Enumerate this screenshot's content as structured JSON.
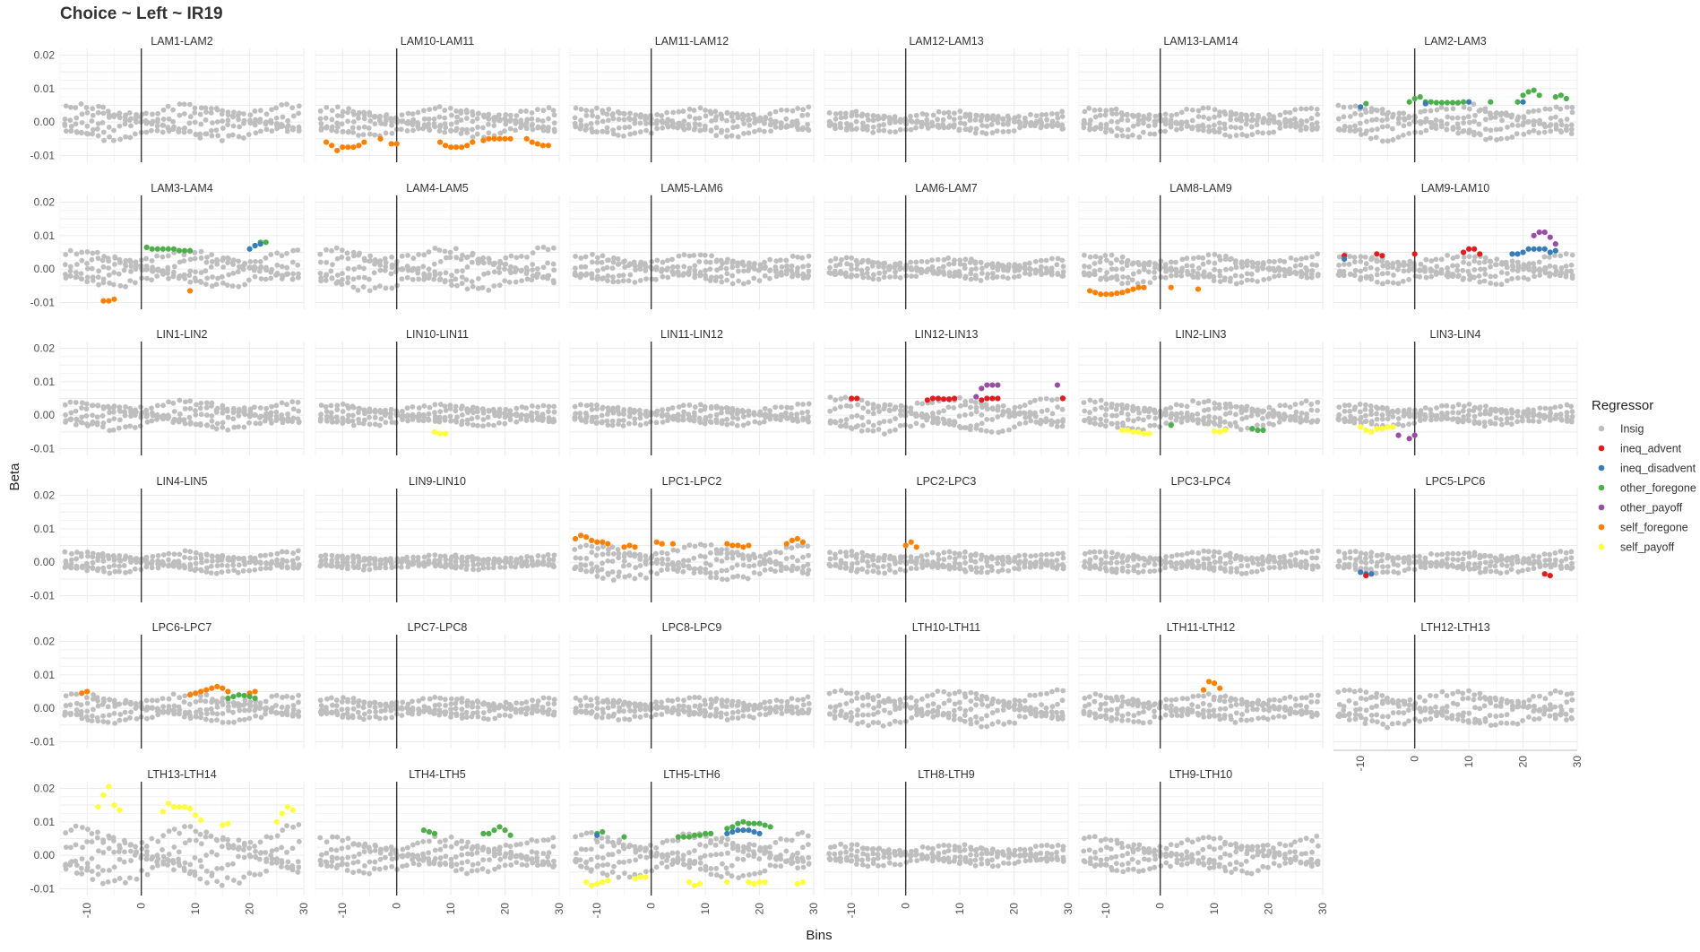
{
  "chart_data": {
    "type": "scatter",
    "title": "Choice ~ Left ~ IR19",
    "xlabel": "Bins",
    "ylabel": "Beta",
    "xlim": [
      -15,
      30
    ],
    "ylim": [
      -0.012,
      0.022
    ],
    "x_ticks": [
      -10,
      0,
      10,
      20,
      30
    ],
    "y_ticks": [
      -0.01,
      0.0,
      0.01,
      0.02
    ],
    "y_tick_labels": [
      "-0.01",
      "0.00",
      "0.01",
      "0.02"
    ],
    "vline_x": 0,
    "grid": true,
    "legend": {
      "title": "Regressor",
      "placement": "right",
      "entries": [
        {
          "name": "Insig",
          "color": "#bebebe"
        },
        {
          "name": "ineq_advent",
          "color": "#e41a1c"
        },
        {
          "name": "ineq_disadvent",
          "color": "#377eb8"
        },
        {
          "name": "other_foregone",
          "color": "#4daf4a"
        },
        {
          "name": "other_payoff",
          "color": "#984ea3"
        },
        {
          "name": "self_foregone",
          "color": "#ff7f00"
        },
        {
          "name": "self_payoff",
          "color": "#ffff33"
        }
      ]
    },
    "panels": [
      {
        "label": "LAM1-LAM2",
        "amp": 0.005,
        "sig": []
      },
      {
        "label": "LAM10-LAM11",
        "amp": 0.004,
        "sig": [
          {
            "series": "self_foregone",
            "x": [
              -13,
              -12,
              -11,
              -10,
              -9,
              -8,
              -7,
              -6,
              -3,
              -1,
              0,
              8,
              9,
              10,
              11,
              12,
              13,
              14,
              16,
              17,
              18,
              19,
              20,
              21,
              24,
              25,
              26,
              27,
              28
            ],
            "y": [
              -0.006,
              -0.007,
              -0.0085,
              -0.0075,
              -0.0075,
              -0.0075,
              -0.007,
              -0.006,
              -0.005,
              -0.0065,
              -0.0065,
              -0.006,
              -0.007,
              -0.0075,
              -0.0075,
              -0.0075,
              -0.007,
              -0.006,
              -0.0055,
              -0.005,
              -0.005,
              -0.005,
              -0.005,
              -0.005,
              -0.005,
              -0.006,
              -0.0065,
              -0.007,
              -0.007
            ]
          }
        ]
      },
      {
        "label": "LAM11-LAM12",
        "amp": 0.004,
        "sig": []
      },
      {
        "label": "LAM12-LAM13",
        "amp": 0.003,
        "sig": []
      },
      {
        "label": "LAM13-LAM14",
        "amp": 0.004,
        "sig": []
      },
      {
        "label": "LAM2-LAM3",
        "amp": 0.005,
        "sig": [
          {
            "series": "other_foregone",
            "x": [
              -9,
              -1,
              0,
              1,
              2,
              3,
              4,
              5,
              6,
              7,
              8,
              9,
              14,
              19,
              20,
              21,
              22,
              23,
              26,
              27,
              28
            ],
            "y": [
              0.0055,
              0.006,
              0.007,
              0.0075,
              0.006,
              0.006,
              0.0058,
              0.0058,
              0.0058,
              0.0058,
              0.0058,
              0.006,
              0.006,
              0.006,
              0.008,
              0.009,
              0.0095,
              0.008,
              0.0075,
              0.008,
              0.007
            ]
          },
          {
            "series": "ineq_disadvent",
            "x": [
              -10,
              2,
              10,
              20
            ],
            "y": [
              0.0045,
              0.0055,
              0.006,
              0.006
            ]
          }
        ]
      },
      {
        "label": "LAM3-LAM4",
        "amp": 0.005,
        "sig": [
          {
            "series": "self_foregone",
            "x": [
              -7,
              -6,
              -5,
              9
            ],
            "y": [
              -0.0095,
              -0.0095,
              -0.009,
              -0.0065
            ]
          },
          {
            "series": "other_foregone",
            "x": [
              1,
              2,
              3,
              4,
              5,
              6,
              7,
              8,
              9,
              21,
              22,
              23
            ],
            "y": [
              0.0065,
              0.006,
              0.006,
              0.006,
              0.006,
              0.006,
              0.0055,
              0.0055,
              0.0055,
              0.007,
              0.008,
              0.008
            ]
          },
          {
            "series": "ineq_disadvent",
            "x": [
              20,
              21,
              22
            ],
            "y": [
              0.006,
              0.007,
              0.0075
            ]
          }
        ]
      },
      {
        "label": "LAM4-LAM5",
        "amp": 0.006,
        "sig": []
      },
      {
        "label": "LAM5-LAM6",
        "amp": 0.004,
        "sig": []
      },
      {
        "label": "LAM6-LAM7",
        "amp": 0.003,
        "sig": []
      },
      {
        "label": "LAM8-LAM9",
        "amp": 0.004,
        "sig": [
          {
            "series": "self_foregone",
            "x": [
              -13,
              -12,
              -11,
              -10,
              -9,
              -8,
              -7,
              -6,
              -5,
              -4,
              -3,
              2,
              7
            ],
            "y": [
              -0.0065,
              -0.007,
              -0.0075,
              -0.0075,
              -0.0075,
              -0.0072,
              -0.007,
              -0.0065,
              -0.006,
              -0.0055,
              -0.0055,
              -0.0055,
              -0.006
            ]
          }
        ]
      },
      {
        "label": "LAM9-LAM10",
        "amp": 0.004,
        "sig": [
          {
            "series": "ineq_advent",
            "x": [
              -13,
              -7,
              -6,
              0,
              9,
              10,
              11,
              12
            ],
            "y": [
              0.004,
              0.0045,
              0.004,
              0.0045,
              0.005,
              0.006,
              0.006,
              0.0045
            ]
          },
          {
            "series": "other_payoff",
            "x": [
              22,
              23,
              24,
              25,
              26
            ],
            "y": [
              0.01,
              0.011,
              0.011,
              0.0095,
              0.0075
            ]
          },
          {
            "series": "ineq_disadvent",
            "x": [
              -13,
              18,
              19,
              20,
              21,
              22,
              23,
              24,
              25,
              26
            ],
            "y": [
              0.003,
              0.0045,
              0.0045,
              0.005,
              0.006,
              0.006,
              0.006,
              0.006,
              0.005,
              0.0055
            ]
          }
        ]
      },
      {
        "label": "LIN1-LIN2",
        "amp": 0.004,
        "sig": []
      },
      {
        "label": "LIN10-LIN11",
        "amp": 0.003,
        "sig": [
          {
            "series": "self_payoff",
            "x": [
              7,
              8,
              9
            ],
            "y": [
              -0.005,
              -0.0055,
              -0.0055
            ]
          }
        ]
      },
      {
        "label": "LIN11-LIN12",
        "amp": 0.003,
        "sig": []
      },
      {
        "label": "LIN12-LIN13",
        "amp": 0.005,
        "sig": [
          {
            "series": "ineq_advent",
            "x": [
              -10,
              -9,
              4,
              5,
              6,
              7,
              8,
              9,
              14,
              15,
              16,
              17,
              29
            ],
            "y": [
              0.005,
              0.005,
              0.0045,
              0.005,
              0.005,
              0.0048,
              0.0048,
              0.005,
              0.0045,
              0.005,
              0.005,
              0.005,
              0.005
            ]
          },
          {
            "series": "other_payoff",
            "x": [
              13,
              14,
              15,
              16,
              17,
              28
            ],
            "y": [
              0.0055,
              0.008,
              0.009,
              0.009,
              0.009,
              0.009
            ]
          }
        ]
      },
      {
        "label": "LIN2-LIN3",
        "amp": 0.004,
        "sig": [
          {
            "series": "self_payoff",
            "x": [
              -7,
              -6,
              -5,
              -4,
              -3,
              -2,
              10,
              11,
              12
            ],
            "y": [
              -0.0045,
              -0.0045,
              -0.005,
              -0.005,
              -0.0055,
              -0.0055,
              -0.0048,
              -0.005,
              -0.0045
            ]
          },
          {
            "series": "other_foregone",
            "x": [
              2,
              17,
              18,
              19
            ],
            "y": [
              -0.003,
              -0.004,
              -0.0045,
              -0.0045
            ]
          }
        ]
      },
      {
        "label": "LIN3-LIN4",
        "amp": 0.003,
        "sig": [
          {
            "series": "self_payoff",
            "x": [
              -10,
              -9,
              -8,
              -7,
              -6,
              -5,
              -4
            ],
            "y": [
              -0.0035,
              -0.0045,
              -0.005,
              -0.004,
              -0.004,
              -0.0035,
              -0.0035
            ]
          },
          {
            "series": "other_payoff",
            "x": [
              -3,
              -1,
              0
            ],
            "y": [
              -0.006,
              -0.007,
              -0.006
            ]
          }
        ]
      },
      {
        "label": "LIN4-LIN5",
        "amp": 0.003,
        "sig": []
      },
      {
        "label": "LIN9-LIN10",
        "amp": 0.002,
        "sig": []
      },
      {
        "label": "LPC1-LPC2",
        "amp": 0.005,
        "sig": [
          {
            "series": "self_foregone",
            "x": [
              -14,
              -13,
              -12,
              -11,
              -10,
              -9,
              -8,
              -5,
              -4,
              -3,
              1,
              2,
              4,
              14,
              15,
              16,
              17,
              18,
              25,
              26,
              27,
              28
            ],
            "y": [
              0.007,
              0.008,
              0.0075,
              0.0065,
              0.006,
              0.006,
              0.0055,
              0.0045,
              0.005,
              0.0045,
              0.006,
              0.0055,
              0.0055,
              0.0055,
              0.005,
              0.005,
              0.0045,
              0.005,
              0.0055,
              0.0065,
              0.007,
              0.006
            ]
          }
        ]
      },
      {
        "label": "LPC2-LPC3",
        "amp": 0.003,
        "sig": [
          {
            "series": "self_foregone",
            "x": [
              0,
              1,
              2
            ],
            "y": [
              0.005,
              0.006,
              0.0045
            ]
          }
        ]
      },
      {
        "label": "LPC3-LPC4",
        "amp": 0.003,
        "sig": []
      },
      {
        "label": "LPC5-LPC6",
        "amp": 0.003,
        "sig": [
          {
            "series": "ineq_disadvent",
            "x": [
              -10,
              -9,
              -8
            ],
            "y": [
              -0.003,
              -0.0035,
              -0.0035
            ]
          },
          {
            "series": "ineq_advent",
            "x": [
              -9,
              24,
              25
            ],
            "y": [
              -0.004,
              -0.0035,
              -0.004
            ]
          }
        ]
      },
      {
        "label": "LPC6-LPC7",
        "amp": 0.004,
        "sig": [
          {
            "series": "self_foregone",
            "x": [
              -11,
              -10,
              9,
              10,
              11,
              12,
              13,
              14,
              15,
              16,
              20,
              21
            ],
            "y": [
              0.0045,
              0.005,
              0.004,
              0.0045,
              0.005,
              0.0055,
              0.006,
              0.0065,
              0.006,
              0.005,
              0.0045,
              0.005
            ]
          },
          {
            "series": "other_foregone",
            "x": [
              16,
              17,
              18,
              19,
              20,
              21
            ],
            "y": [
              0.003,
              0.0035,
              0.004,
              0.0038,
              0.0035,
              0.003
            ]
          }
        ]
      },
      {
        "label": "LPC7-LPC8",
        "amp": 0.003,
        "sig": []
      },
      {
        "label": "LPC8-LPC9",
        "amp": 0.003,
        "sig": []
      },
      {
        "label": "LTH10-LTH11",
        "amp": 0.005,
        "sig": []
      },
      {
        "label": "LTH11-LTH12",
        "amp": 0.004,
        "sig": [
          {
            "series": "self_foregone",
            "x": [
              8,
              9,
              10,
              11
            ],
            "y": [
              0.0055,
              0.008,
              0.0075,
              0.006
            ]
          }
        ]
      },
      {
        "label": "LTH12-LTH13",
        "amp": 0.005,
        "sig": []
      },
      {
        "label": "LTH13-LTH14",
        "amp": 0.008,
        "sig": [
          {
            "series": "self_payoff",
            "x": [
              -8,
              -7,
              -6,
              -5,
              -4,
              4,
              5,
              6,
              7,
              8,
              9,
              10,
              11,
              15,
              16,
              25,
              26,
              27,
              28
            ],
            "y": [
              0.0145,
              0.018,
              0.0205,
              0.015,
              0.0135,
              0.013,
              0.0155,
              0.0145,
              0.0145,
              0.0145,
              0.014,
              0.012,
              0.0105,
              0.009,
              0.0095,
              0.01,
              0.0125,
              0.0145,
              0.0135
            ]
          }
        ]
      },
      {
        "label": "LTH4-LTH5",
        "amp": 0.005,
        "sig": [
          {
            "series": "other_foregone",
            "x": [
              5,
              6,
              7,
              16,
              17,
              18,
              19,
              20,
              21
            ],
            "y": [
              0.0075,
              0.007,
              0.0065,
              0.0065,
              0.0065,
              0.0075,
              0.0085,
              0.0075,
              0.006
            ]
          }
        ]
      },
      {
        "label": "LTH5-LTH6",
        "amp": 0.006,
        "sig": [
          {
            "series": "self_payoff",
            "x": [
              -12,
              -11,
              -10,
              -9,
              -8,
              -3,
              -2,
              -1,
              7,
              8,
              9,
              14,
              18,
              19,
              20,
              21,
              27,
              28
            ],
            "y": [
              -0.008,
              -0.009,
              -0.0085,
              -0.008,
              -0.0075,
              -0.007,
              -0.0065,
              -0.0065,
              -0.008,
              -0.009,
              -0.0085,
              -0.008,
              -0.008,
              -0.0085,
              -0.008,
              -0.008,
              -0.0085,
              -0.008
            ]
          },
          {
            "series": "other_foregone",
            "x": [
              -10,
              -9,
              -5,
              5,
              6,
              7,
              8,
              9,
              10,
              11,
              14,
              15,
              16,
              17,
              18,
              19,
              20,
              21,
              22
            ],
            "y": [
              0.0065,
              0.007,
              0.0055,
              0.0055,
              0.0055,
              0.0055,
              0.006,
              0.006,
              0.0065,
              0.0065,
              0.008,
              0.0085,
              0.0095,
              0.01,
              0.0095,
              0.0095,
              0.0095,
              0.009,
              0.0085
            ]
          },
          {
            "series": "ineq_disadvent",
            "x": [
              -10,
              14,
              15,
              16,
              17,
              18,
              19,
              20
            ],
            "y": [
              0.006,
              0.0065,
              0.007,
              0.0075,
              0.0075,
              0.0075,
              0.007,
              0.0065
            ]
          }
        ]
      },
      {
        "label": "LTH8-LTH9",
        "amp": 0.003,
        "sig": []
      },
      {
        "label": "LTH9-LTH10",
        "amp": 0.005,
        "sig": []
      }
    ]
  }
}
